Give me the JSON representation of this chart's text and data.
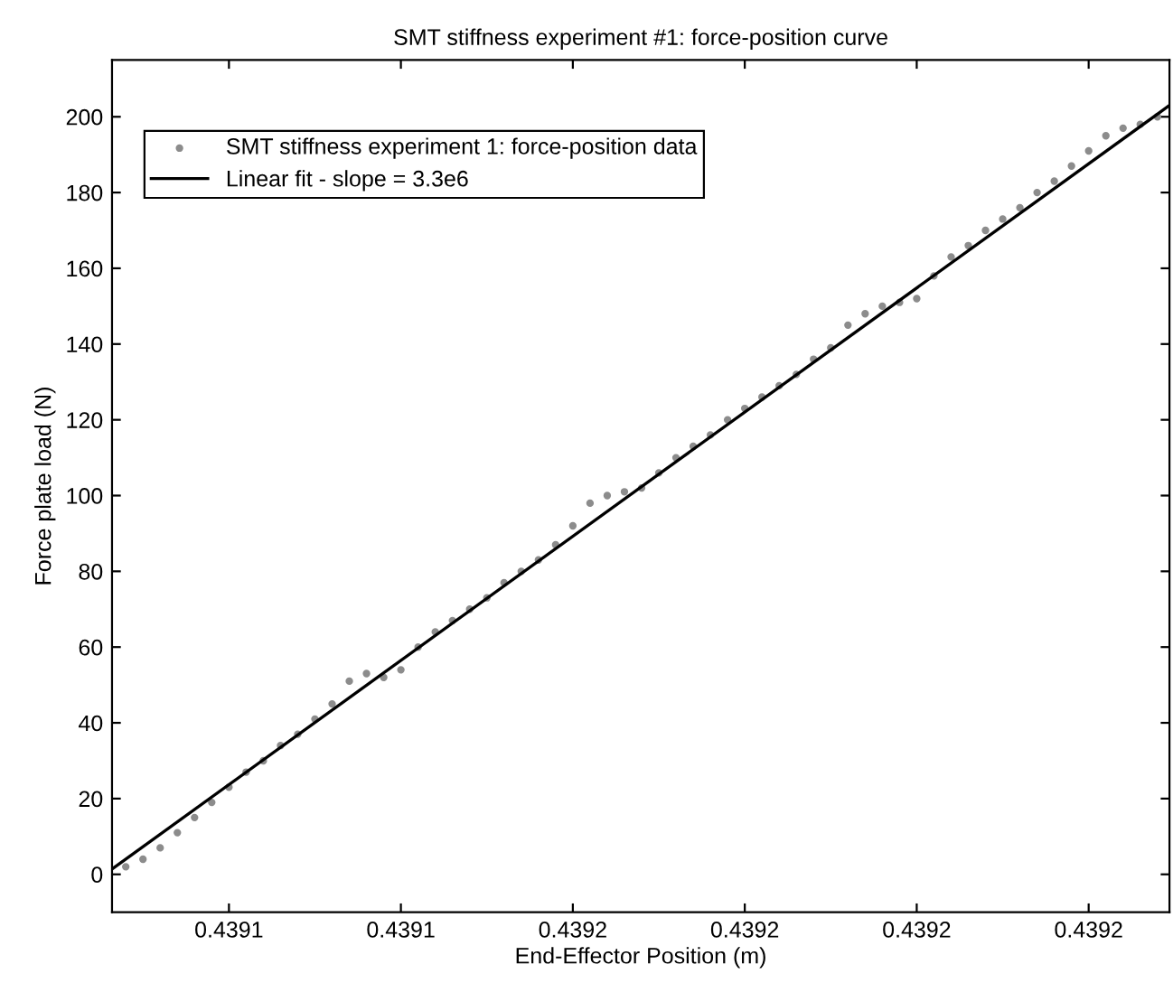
{
  "chart_data": {
    "type": "scatter",
    "title": "SMT stiffness experiment #1: force-position curve",
    "xlabel": "End-Effector Position (m)",
    "ylabel": "Force plate load (N)",
    "xlim": [
      0.4391232,
      0.4391847
    ],
    "ylim": [
      -10,
      215
    ],
    "xticks": [
      {
        "value": 0.43913,
        "label": "0.4391"
      },
      {
        "value": 0.43914,
        "label": "0.4391"
      },
      {
        "value": 0.43915,
        "label": "0.4392"
      },
      {
        "value": 0.43916,
        "label": "0.4392"
      },
      {
        "value": 0.43917,
        "label": "0.4392"
      },
      {
        "value": 0.43918,
        "label": "0.4392"
      }
    ],
    "yticks": [
      0,
      20,
      40,
      60,
      80,
      100,
      120,
      140,
      160,
      180,
      200
    ],
    "grid": false,
    "legend": "top left",
    "series": [
      {
        "name": "SMT stiffness experiment 1: force-position data",
        "color": "#8c8c8c",
        "marker": "circle",
        "x": [
          0.439124,
          0.439125,
          0.439126,
          0.439127,
          0.439128,
          0.439129,
          0.43913,
          0.439131,
          0.439132,
          0.439133,
          0.439134,
          0.439135,
          0.439136,
          0.439137,
          0.439138,
          0.439139,
          0.43914,
          0.439141,
          0.439142,
          0.439143,
          0.439144,
          0.439145,
          0.439146,
          0.439147,
          0.439148,
          0.439149,
          0.43915,
          0.439151,
          0.439152,
          0.439153,
          0.439154,
          0.439155,
          0.439156,
          0.439157,
          0.439158,
          0.439159,
          0.43916,
          0.439161,
          0.439162,
          0.439163,
          0.439164,
          0.439165,
          0.439166,
          0.439167,
          0.439168,
          0.439169,
          0.43917,
          0.439171,
          0.439172,
          0.439173,
          0.439174,
          0.439175,
          0.439176,
          0.439177,
          0.439178,
          0.439179,
          0.43918,
          0.439181,
          0.439182,
          0.439183,
          0.439184
        ],
        "values": [
          2,
          4,
          7,
          11,
          15,
          19,
          23,
          27,
          30,
          34,
          37,
          41,
          45,
          51,
          53,
          52,
          54,
          60,
          64,
          67,
          70,
          73,
          77,
          80,
          83,
          87,
          92,
          98,
          100,
          101,
          102,
          106,
          110,
          113,
          116,
          120,
          123,
          126,
          129,
          132,
          136,
          139,
          145,
          148,
          150,
          151,
          152,
          158,
          163,
          166,
          170,
          173,
          176,
          180,
          183,
          187,
          191,
          195,
          197,
          198,
          200
        ]
      },
      {
        "name": "Linear fit - slope = 3.3e6",
        "type": "line",
        "color": "#000000",
        "marker": "none",
        "line_style": "solid",
        "x": [
          0.4391232,
          0.4391847
        ],
        "values": [
          1.4,
          203
        ]
      }
    ]
  }
}
